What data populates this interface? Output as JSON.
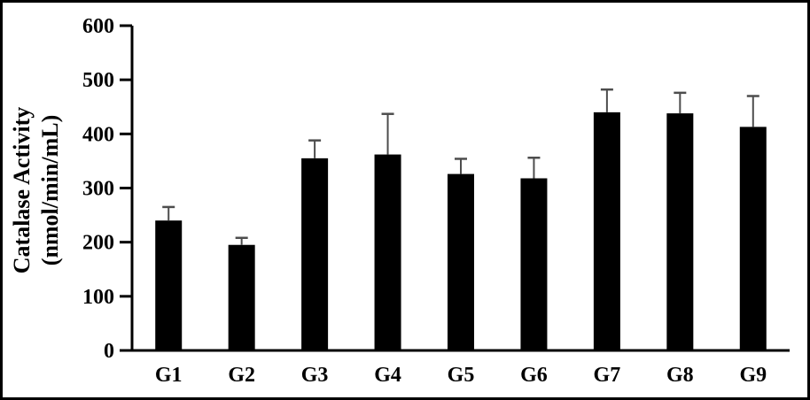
{
  "frame": {
    "background": "#ffffff",
    "border_color": "#000000"
  },
  "chart_data": {
    "type": "bar",
    "title": "",
    "categories": [
      "G1",
      "G2",
      "G3",
      "G4",
      "G5",
      "G6",
      "G7",
      "G8",
      "G9"
    ],
    "values": [
      240,
      195,
      355,
      362,
      326,
      318,
      440,
      438,
      413
    ],
    "errors_plus": [
      25,
      13,
      33,
      75,
      28,
      38,
      42,
      38,
      57
    ],
    "ylabel_line1": "Catalase Activity",
    "ylabel_line2": "(nmol/min/mL)",
    "xlabel": "",
    "ylim": [
      0,
      600
    ],
    "yticks": [
      0,
      100,
      200,
      300,
      400,
      500,
      600
    ],
    "grid": false,
    "legend": false,
    "bar_color": "#000000",
    "error_bar_color": "#4d4d4d",
    "axis_color": "#000000",
    "tick_label_color": "#000000"
  }
}
